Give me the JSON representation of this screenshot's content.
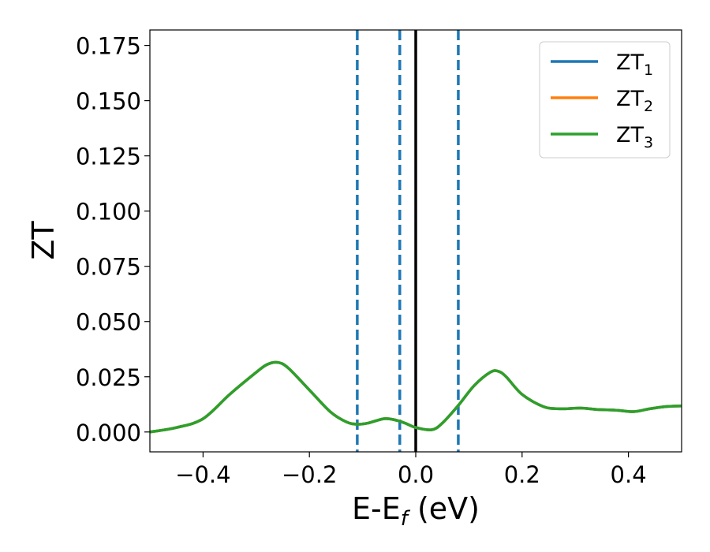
{
  "chart_data": {
    "type": "line",
    "xlabel": {
      "main": "E-E",
      "sub": "f",
      "unit": " (eV)"
    },
    "ylabel": "ZT",
    "xlim": [
      -0.5,
      0.5
    ],
    "ylim": [
      -0.009,
      0.182
    ],
    "x_ticks": [
      {
        "value": -0.4,
        "label": "−0.4"
      },
      {
        "value": -0.2,
        "label": "−0.2"
      },
      {
        "value": 0.0,
        "label": "0.0"
      },
      {
        "value": 0.2,
        "label": "0.2"
      },
      {
        "value": 0.4,
        "label": "0.4"
      }
    ],
    "y_ticks": [
      {
        "value": 0.0,
        "label": "0.000"
      },
      {
        "value": 0.025,
        "label": "0.025"
      },
      {
        "value": 0.05,
        "label": "0.050"
      },
      {
        "value": 0.075,
        "label": "0.075"
      },
      {
        "value": 0.1,
        "label": "0.100"
      },
      {
        "value": 0.125,
        "label": "0.125"
      },
      {
        "value": 0.15,
        "label": "0.150"
      },
      {
        "value": 0.175,
        "label": "0.175"
      }
    ],
    "grid": false,
    "legend_position": "top-right",
    "x": [
      -0.5,
      -0.45,
      -0.4,
      -0.35,
      -0.3,
      -0.28,
      -0.26,
      -0.24,
      -0.2,
      -0.16,
      -0.13,
      -0.11,
      -0.09,
      -0.06,
      -0.04,
      -0.02,
      0.0,
      0.03,
      0.05,
      0.08,
      0.11,
      0.14,
      0.155,
      0.17,
      0.2,
      0.24,
      0.27,
      0.31,
      0.34,
      0.38,
      0.41,
      0.44,
      0.47,
      0.5
    ],
    "series": [
      {
        "name": "ZT",
        "sub": "1",
        "color": "#1f77b4",
        "values": [
          0.0,
          0.002,
          0.006,
          0.017,
          0.027,
          0.0305,
          0.0315,
          0.029,
          0.019,
          0.009,
          0.0045,
          0.0035,
          0.004,
          0.006,
          0.0055,
          0.004,
          0.002,
          0.001,
          0.004,
          0.012,
          0.021,
          0.027,
          0.0275,
          0.025,
          0.017,
          0.0115,
          0.0105,
          0.0108,
          0.0102,
          0.0098,
          0.0092,
          0.0105,
          0.0115,
          0.0118
        ]
      },
      {
        "name": "ZT",
        "sub": "2",
        "color": "#ff7f0e",
        "values": [
          0.0,
          0.002,
          0.006,
          0.017,
          0.027,
          0.0305,
          0.0315,
          0.029,
          0.019,
          0.009,
          0.0045,
          0.0035,
          0.004,
          0.006,
          0.0055,
          0.004,
          0.002,
          0.001,
          0.004,
          0.012,
          0.021,
          0.027,
          0.0275,
          0.025,
          0.017,
          0.0115,
          0.0105,
          0.0108,
          0.0102,
          0.0098,
          0.0092,
          0.0105,
          0.0115,
          0.0118
        ]
      },
      {
        "name": "ZT",
        "sub": "3",
        "color": "#2ca02c",
        "values": [
          0.0,
          0.002,
          0.006,
          0.017,
          0.027,
          0.0305,
          0.0315,
          0.029,
          0.019,
          0.009,
          0.0045,
          0.0035,
          0.004,
          0.006,
          0.0055,
          0.004,
          0.002,
          0.001,
          0.004,
          0.012,
          0.021,
          0.027,
          0.0275,
          0.025,
          0.017,
          0.0115,
          0.0105,
          0.0108,
          0.0102,
          0.0098,
          0.0092,
          0.0105,
          0.0115,
          0.0118
        ]
      }
    ],
    "vlines": [
      {
        "x": -0.11,
        "style": "dashed",
        "color": "#1f77b4"
      },
      {
        "x": -0.03,
        "style": "dashed",
        "color": "#1f77b4"
      },
      {
        "x": 0.08,
        "style": "dashed",
        "color": "#1f77b4"
      },
      {
        "x": 0.0,
        "style": "solid",
        "color": "#000000"
      }
    ]
  }
}
